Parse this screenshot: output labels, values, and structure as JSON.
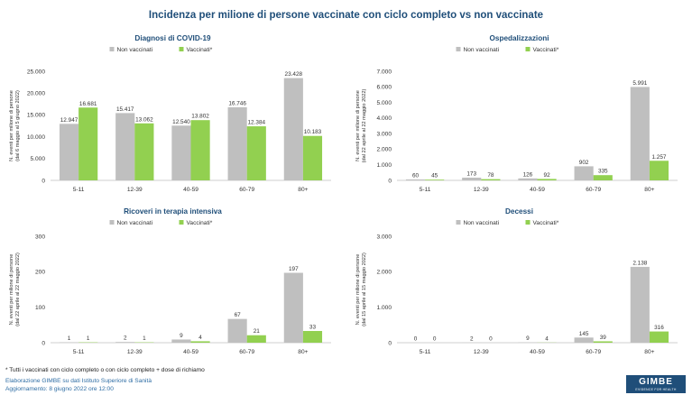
{
  "page": {
    "title": "Incidenza per milione di persone vaccinate con ciclo completo vs non vaccinate",
    "footnote": "* Tutti i vaccinati con ciclo completo o con ciclo completo + dose di richiamo",
    "source": "Elaborazione GIMBE su dati Istituto Superiore di Sanità",
    "updated": "Aggiornamento: 8 giugno 2022 ore 12:00",
    "logo_text": "GIMBE",
    "logo_tagline": "EVIDENCE FOR HEALTH"
  },
  "colors": {
    "non_vaccinati": "#bfbfbf",
    "vaccinati": "#92d050",
    "title": "#1f4e79"
  },
  "chart_data": [
    {
      "type": "bar",
      "title": "Diagnosi di COVID-19",
      "ylabel_lines": [
        "N. eventi per milione di persone",
        "(dal 6  maggio al 5  giugno 2022)"
      ],
      "categories": [
        "5-11",
        "12-39",
        "40-59",
        "60-79",
        "80+"
      ],
      "series": [
        {
          "name": "Non vaccinati",
          "values": [
            12947,
            15417,
            12540,
            16746,
            23428
          ],
          "labels": [
            "12.947",
            "15.417",
            "12.540",
            "16.746",
            "23.428"
          ]
        },
        {
          "name": "Vaccinati*",
          "values": [
            16681,
            13062,
            13802,
            12384,
            10183
          ],
          "labels": [
            "16.681",
            "13.062",
            "13.802",
            "12.384",
            "10.183"
          ]
        }
      ],
      "ylim": [
        0,
        25000
      ],
      "yticks": [
        0,
        5000,
        10000,
        15000,
        20000,
        25000
      ],
      "ytick_labels": [
        "0",
        "5.000",
        "10.000",
        "15.000",
        "20.000",
        "25.000"
      ],
      "grid": false,
      "legend": "top"
    },
    {
      "type": "bar",
      "title": "Ospedalizzazioni",
      "ylabel_lines": [
        "N. eventi per milione di persone",
        "(dal 22  aprile al 22  maggio 2022)"
      ],
      "categories": [
        "5-11",
        "12-39",
        "40-59",
        "60-79",
        "80+"
      ],
      "series": [
        {
          "name": "Non vaccinati",
          "values": [
            60,
            173,
            126,
            902,
            5991
          ],
          "labels": [
            "60",
            "173",
            "126",
            "902",
            "5.991"
          ]
        },
        {
          "name": "Vaccinati*",
          "values": [
            45,
            78,
            92,
            335,
            1257
          ],
          "labels": [
            "45",
            "78",
            "92",
            "335",
            "1.257"
          ]
        }
      ],
      "ylim": [
        0,
        7000
      ],
      "yticks": [
        0,
        1000,
        2000,
        3000,
        4000,
        5000,
        6000,
        7000
      ],
      "ytick_labels": [
        "0",
        "1.000",
        "2.000",
        "3.000",
        "4.000",
        "5.000",
        "6.000",
        "7.000"
      ],
      "grid": false,
      "legend": "top"
    },
    {
      "type": "bar",
      "title": "Ricoveri in terapia intensiva",
      "ylabel_lines": [
        "N. eventi per milione di persone",
        "(dal 22  aprile al 22  maggio 2022)"
      ],
      "categories": [
        "5-11",
        "12-39",
        "40-59",
        "60-79",
        "80+"
      ],
      "series": [
        {
          "name": "Non vaccinati",
          "values": [
            1,
            2,
            9,
            67,
            197
          ],
          "labels": [
            "1",
            "2",
            "9",
            "67",
            "197"
          ]
        },
        {
          "name": "Vaccinati*",
          "values": [
            1,
            1,
            4,
            21,
            33
          ],
          "labels": [
            "1",
            "1",
            "4",
            "21",
            "33"
          ]
        }
      ],
      "ylim": [
        0,
        300
      ],
      "yticks": [
        0,
        100,
        200,
        300
      ],
      "ytick_labels": [
        "0",
        "100",
        "200",
        "300"
      ],
      "grid": false,
      "legend": "top"
    },
    {
      "type": "bar",
      "title": "Decessi",
      "ylabel_lines": [
        "N. eventi per milione di persone",
        "(dal 15  aprile al 15  maggio 2022)"
      ],
      "categories": [
        "5-11",
        "12-39",
        "40-59",
        "60-79",
        "80+"
      ],
      "series": [
        {
          "name": "Non vaccinati",
          "values": [
            0,
            2,
            9,
            145,
            2138
          ],
          "labels": [
            "0",
            "2",
            "9",
            "145",
            "2.138"
          ]
        },
        {
          "name": "Vaccinati*",
          "values": [
            0,
            0,
            4,
            39,
            316
          ],
          "labels": [
            "0",
            "0",
            "4",
            "39",
            "316"
          ]
        }
      ],
      "ylim": [
        0,
        3000
      ],
      "yticks": [
        0,
        1000,
        2000,
        3000
      ],
      "ytick_labels": [
        "0",
        "1.000",
        "2.000",
        "3.000"
      ],
      "grid": false,
      "legend": "top"
    }
  ]
}
